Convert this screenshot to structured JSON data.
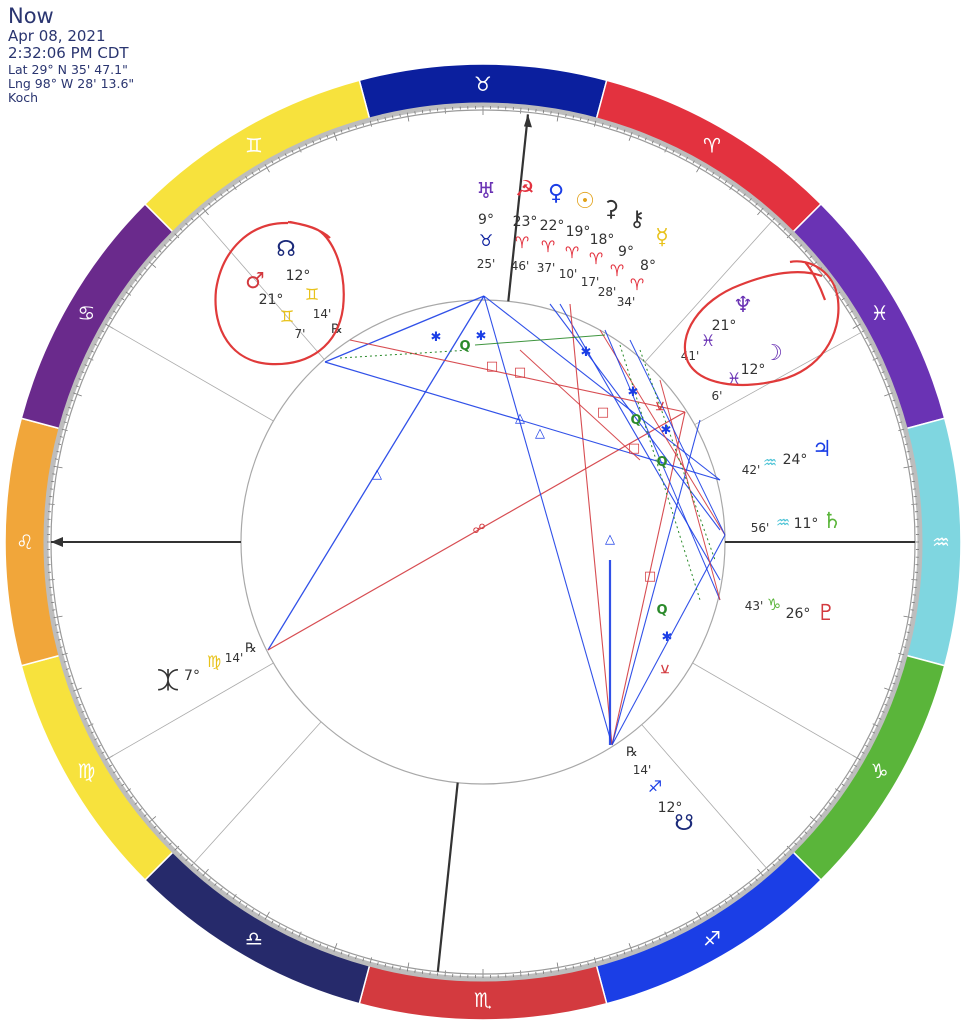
{
  "header": {
    "title": "Now",
    "date": "Apr 08, 2021",
    "time": "2:32:06 PM CDT",
    "lat": "Lat 29° N 35' 47.1\"",
    "lng": "Lng 98° W 28' 13.6\"",
    "house_system": "Koch"
  },
  "signs": [
    {
      "name": "taurus",
      "glyph": "♉",
      "color": "#0b1f9e"
    },
    {
      "name": "aries",
      "glyph": "♈",
      "color": "#e3323f"
    },
    {
      "name": "pisces",
      "glyph": "♓",
      "color": "#6a33b4"
    },
    {
      "name": "aquarius",
      "glyph": "♒",
      "color": "#7fd6e0"
    },
    {
      "name": "capricorn",
      "glyph": "♑",
      "color": "#5ab53a"
    },
    {
      "name": "sagittarius",
      "glyph": "♐",
      "color": "#1b3ee6"
    },
    {
      "name": "scorpio",
      "glyph": "♏",
      "color": "#d33a3f"
    },
    {
      "name": "libra",
      "glyph": "♎",
      "color": "#262a6b"
    },
    {
      "name": "virgo",
      "glyph": "♍",
      "color": "#f7e23d"
    },
    {
      "name": "leo",
      "glyph": "♌",
      "color": "#f1a63a"
    },
    {
      "name": "cancer",
      "glyph": "♋",
      "color": "#6a2a8c"
    },
    {
      "name": "gemini",
      "glyph": "♊",
      "color": "#f7e23d"
    }
  ],
  "houses": [
    {
      "name": "house-cusp-asc-axis"
    },
    {
      "name": "house-cusp-12"
    },
    {
      "name": "house-cusp-11"
    },
    {
      "name": "house-cusp-mc-axis"
    },
    {
      "name": "house-cusp-9"
    },
    {
      "name": "house-cusp-8"
    }
  ],
  "planets": [
    {
      "name": "uranus",
      "glyph": "♅",
      "deg": "9°",
      "sign": "♉",
      "min": "25'",
      "color": "#6a33b4",
      "signColor": "#0b1f9e"
    },
    {
      "name": "lilith",
      "glyph": "☭",
      "deg": "23°",
      "sign": "♈",
      "min": "46'",
      "color": "#e3323f",
      "signColor": "#e3323f"
    },
    {
      "name": "venus",
      "glyph": "♀",
      "deg": "22°",
      "sign": "♈",
      "min": "37'",
      "color": "#1b3ee6",
      "signColor": "#e3323f"
    },
    {
      "name": "sun",
      "glyph": "☉",
      "deg": "19°",
      "sign": "♈",
      "min": "10'",
      "color": "#e2a21a",
      "signColor": "#e3323f"
    },
    {
      "name": "ceres",
      "glyph": "⚳",
      "deg": "18°",
      "sign": "♈",
      "min": "17'",
      "color": "#333333",
      "signColor": "#e3323f"
    },
    {
      "name": "chiron",
      "glyph": "⚷",
      "deg": "9°",
      "sign": "♈",
      "min": "28'",
      "color": "#333333",
      "signColor": "#e3323f"
    },
    {
      "name": "mercury",
      "glyph": "☿",
      "deg": "8°",
      "sign": "♈",
      "min": "34'",
      "color": "#e8c21a",
      "signColor": "#e3323f"
    },
    {
      "name": "neptune",
      "glyph": "♆",
      "deg": "21°",
      "sign": "♓",
      "min": "41'",
      "color": "#6a33b4",
      "signColor": "#6a33b4"
    },
    {
      "name": "moon",
      "glyph": "☽",
      "deg": "12°",
      "sign": "♓",
      "min": "6'",
      "color": "#6a33b4",
      "signColor": "#6a33b4"
    },
    {
      "name": "jupiter",
      "glyph": "♃",
      "deg": "24°",
      "sign": "♒",
      "min": "42'",
      "color": "#1b3ee6",
      "signColor": "#4cc3d6"
    },
    {
      "name": "saturn",
      "glyph": "♄",
      "deg": "11°",
      "sign": "♒",
      "min": "56'",
      "color": "#5ab53a",
      "signColor": "#4cc3d6"
    },
    {
      "name": "pluto",
      "glyph": "♇",
      "deg": "26°",
      "sign": "♑",
      "min": "43'",
      "color": "#d33a3f",
      "signColor": "#5ab53a"
    },
    {
      "name": "south-node",
      "glyph": "☋",
      "deg": "12°",
      "sign": "♐",
      "min": "14'",
      "color": "#1b2a7a",
      "signColor": "#1b3ee6",
      "retro": "℞"
    },
    {
      "name": "vertex",
      "glyph": "⯰",
      "deg": "7°",
      "sign": "♍",
      "min": "14'",
      "color": "#333333",
      "signColor": "#e8c21a",
      "retro": "℞"
    },
    {
      "name": "north-node",
      "glyph": "☊",
      "deg": "12°",
      "sign": "♊",
      "min": "14'",
      "color": "#1b2a7a",
      "signColor": "#e8c21a",
      "retro": "℞"
    },
    {
      "name": "mars",
      "glyph": "♂",
      "deg": "21°",
      "sign": "♊",
      "min": "7'",
      "color": "#d33a3f",
      "signColor": "#e8c21a"
    }
  ],
  "aspect_symbols": {
    "trine": "△",
    "square": "□",
    "sextile": "✱",
    "quintile": "Q",
    "opposition": "☍",
    "semisextile": "⚺"
  }
}
